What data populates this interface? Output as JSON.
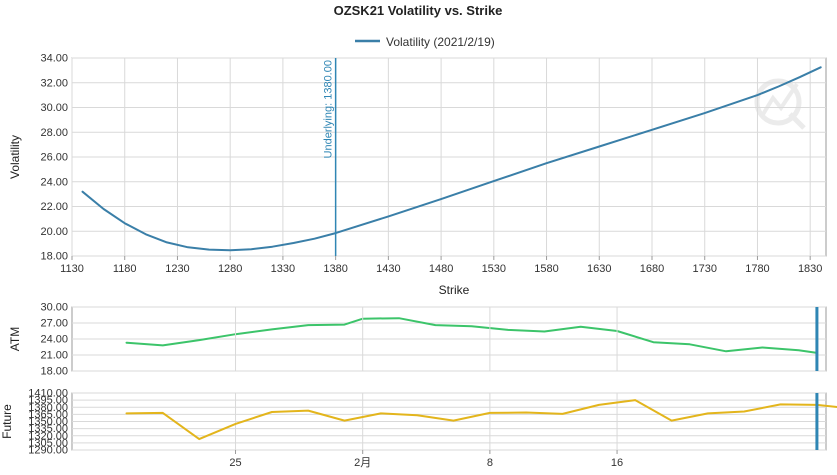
{
  "colors": {
    "volatility_line": "#3a7fa8",
    "atm_line": "#3cc46a",
    "future_line": "#e3b51c",
    "marker_line": "#2f86b4",
    "grid": "#d9d9d9",
    "axis": "#9a9a9a"
  },
  "chart_data": [
    {
      "type": "line",
      "title": "OZSK21 Volatility vs. Strike",
      "xlabel": "Strike",
      "ylabel": "Volatility",
      "xlim": [
        1130,
        1845
      ],
      "ylim": [
        18.0,
        34.0
      ],
      "x_ticks": [
        1130,
        1180,
        1230,
        1280,
        1330,
        1380,
        1430,
        1480,
        1530,
        1580,
        1630,
        1680,
        1730,
        1780,
        1830
      ],
      "x_tick_labels": [
        "1130",
        "1180",
        "1230",
        "1280",
        "1330",
        "1380",
        "1430",
        "1480",
        "1530",
        "1580",
        "1630",
        "1680",
        "1730",
        "1780",
        "1830"
      ],
      "y_ticks": [
        18,
        20,
        22,
        24,
        26,
        28,
        30,
        32,
        34
      ],
      "y_tick_labels": [
        "18.00",
        "20.00",
        "22.00",
        "24.00",
        "26.00",
        "28.00",
        "30.00",
        "32.00",
        "34.00"
      ],
      "grid": true,
      "legend": "top-center",
      "series": [
        {
          "name": "Volatility (2021/2/19)",
          "x": [
            1140,
            1160,
            1180,
            1200,
            1220,
            1240,
            1260,
            1280,
            1300,
            1320,
            1340,
            1360,
            1380,
            1430,
            1480,
            1530,
            1580,
            1630,
            1680,
            1730,
            1780,
            1800,
            1820,
            1840
          ],
          "y": [
            23.2,
            21.8,
            20.65,
            19.75,
            19.1,
            18.7,
            18.52,
            18.47,
            18.55,
            18.75,
            19.05,
            19.4,
            19.85,
            21.2,
            22.6,
            24.05,
            25.5,
            26.85,
            28.2,
            29.55,
            31.0,
            31.7,
            32.45,
            33.25
          ]
        }
      ],
      "annotations": [
        {
          "type": "vline",
          "x": 1380,
          "label": "Underlying: 1380.00"
        }
      ]
    },
    {
      "type": "line",
      "ylabel": "ATM",
      "ylim": [
        18.0,
        30.0
      ],
      "y_ticks": [
        18,
        21,
        24,
        27,
        30
      ],
      "y_tick_labels": [
        "18.00",
        "21.00",
        "24.00",
        "27.00",
        "30.00"
      ],
      "grid": true,
      "series": [
        {
          "name": "ATM",
          "x": [
            19,
            21,
            23,
            25,
            27,
            29,
            31,
            32,
            34,
            36,
            38,
            40,
            42,
            44,
            46,
            48,
            50,
            52,
            54,
            56,
            57
          ],
          "y": [
            23.3,
            22.8,
            23.8,
            24.9,
            25.8,
            26.6,
            26.7,
            27.8,
            27.9,
            26.6,
            26.4,
            25.7,
            25.4,
            26.3,
            25.5,
            23.4,
            23.0,
            21.7,
            22.4,
            21.9,
            21.4
          ]
        }
      ]
    },
    {
      "type": "line",
      "ylabel": "Future",
      "ylim": [
        1290.0,
        1410.0
      ],
      "y_ticks": [
        1290,
        1305,
        1320,
        1335,
        1350,
        1365,
        1380,
        1395,
        1410
      ],
      "y_tick_labels": [
        "1290.00",
        "1305.00",
        "1320.00",
        "1335.00",
        "1350.00",
        "1365.00",
        "1380.00",
        "1395.00",
        "1410.00"
      ],
      "x_ticks": [
        25,
        32,
        39,
        46
      ],
      "x_tick_labels": [
        "25",
        "2月",
        "8",
        "16"
      ],
      "grid": true,
      "series": [
        {
          "name": "Future",
          "x": [
            19,
            21,
            23,
            25,
            27,
            29,
            31,
            33,
            35,
            37,
            39,
            41,
            43,
            45,
            47,
            49,
            51,
            53,
            55,
            57,
            59
          ],
          "y": [
            1367,
            1368,
            1313,
            1345,
            1370,
            1373,
            1352,
            1367,
            1363,
            1352,
            1368,
            1369,
            1366,
            1385,
            1395,
            1352,
            1367,
            1371,
            1386,
            1385,
            1377
          ]
        }
      ]
    }
  ]
}
